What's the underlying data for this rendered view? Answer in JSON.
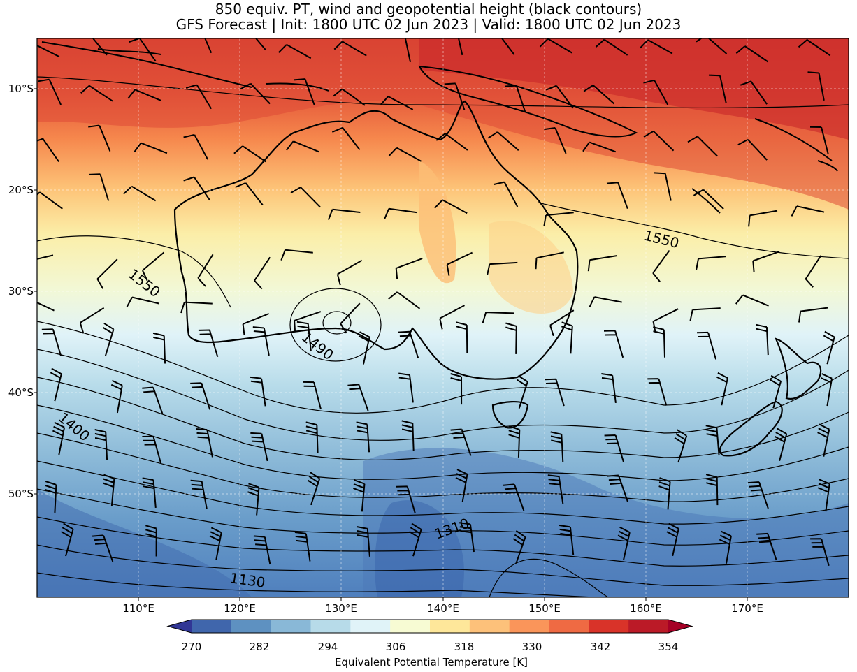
{
  "title_line1": "850 equiv. PT, wind and geopotential height (black contours)",
  "title_line2": "GFS Forecast | Init: 1800 UTC 02 Jun 2023 | Valid: 1800 UTC 02 Jun 2023",
  "lat_labels": [
    "10°S",
    "20°S",
    "30°S",
    "40°S",
    "50°S"
  ],
  "lon_labels": [
    "110°E",
    "120°E",
    "130°E",
    "140°E",
    "150°E",
    "160°E",
    "170°E"
  ],
  "contour_labels": [
    "1550",
    "1550",
    "1490",
    "1400",
    "1310",
    "1130"
  ],
  "colorbar": {
    "label": "Equivalent Potential Temperature [K]",
    "ticks": [
      "270",
      "282",
      "294",
      "306",
      "318",
      "330",
      "342",
      "354"
    ],
    "colors": [
      "#313695",
      "#4066ac",
      "#5e91c1",
      "#89b8d7",
      "#b7dbe9",
      "#e0f3f8",
      "#f7fbd3",
      "#fee79a",
      "#fdc17a",
      "#fa955a",
      "#ef6a43",
      "#d93329",
      "#bb1a27",
      "#a50026"
    ]
  }
}
